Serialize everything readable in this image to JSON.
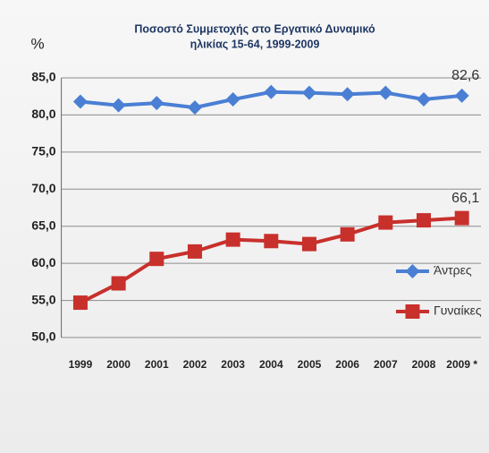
{
  "chart_data": {
    "type": "line",
    "title": "Ποσοστό Συμμετοχής στο Εργατικό Δυναμικό",
    "subtitle": "ηλικίας 15-64, 1999-2009",
    "y_label": "%",
    "categories": [
      "1999",
      "2000",
      "2001",
      "2002",
      "2003",
      "2004",
      "2005",
      "2006",
      "2007",
      "2008",
      "2009 *"
    ],
    "series": [
      {
        "name": "Άντρες",
        "color": "#4a7fd4",
        "marker": "diamond",
        "values": [
          81.8,
          81.3,
          81.6,
          81.0,
          82.1,
          83.1,
          83.0,
          82.8,
          83.0,
          82.1,
          82.6
        ],
        "value_labels": [
          null,
          null,
          null,
          null,
          null,
          null,
          null,
          null,
          null,
          null,
          "82,6"
        ]
      },
      {
        "name": "Γυναίκες",
        "color": "#c8302c",
        "marker": "square",
        "values": [
          54.7,
          57.3,
          60.6,
          61.6,
          63.2,
          63.0,
          62.6,
          63.9,
          65.5,
          65.8,
          66.1
        ],
        "value_labels": [
          null,
          null,
          null,
          null,
          null,
          null,
          null,
          null,
          null,
          null,
          "66,1"
        ]
      }
    ],
    "ylim": [
      50,
      85
    ],
    "yticks": [
      {
        "value": 50,
        "label": "50,0"
      },
      {
        "value": 55,
        "label": "55,0"
      },
      {
        "value": 60,
        "label": "60,0"
      },
      {
        "value": 65,
        "label": "65,0"
      },
      {
        "value": 70,
        "label": "70,0"
      },
      {
        "value": 75,
        "label": "75,0"
      },
      {
        "value": 80,
        "label": "80,0"
      },
      {
        "value": 85,
        "label": "85,0"
      }
    ],
    "grid": true,
    "legend": "right"
  }
}
